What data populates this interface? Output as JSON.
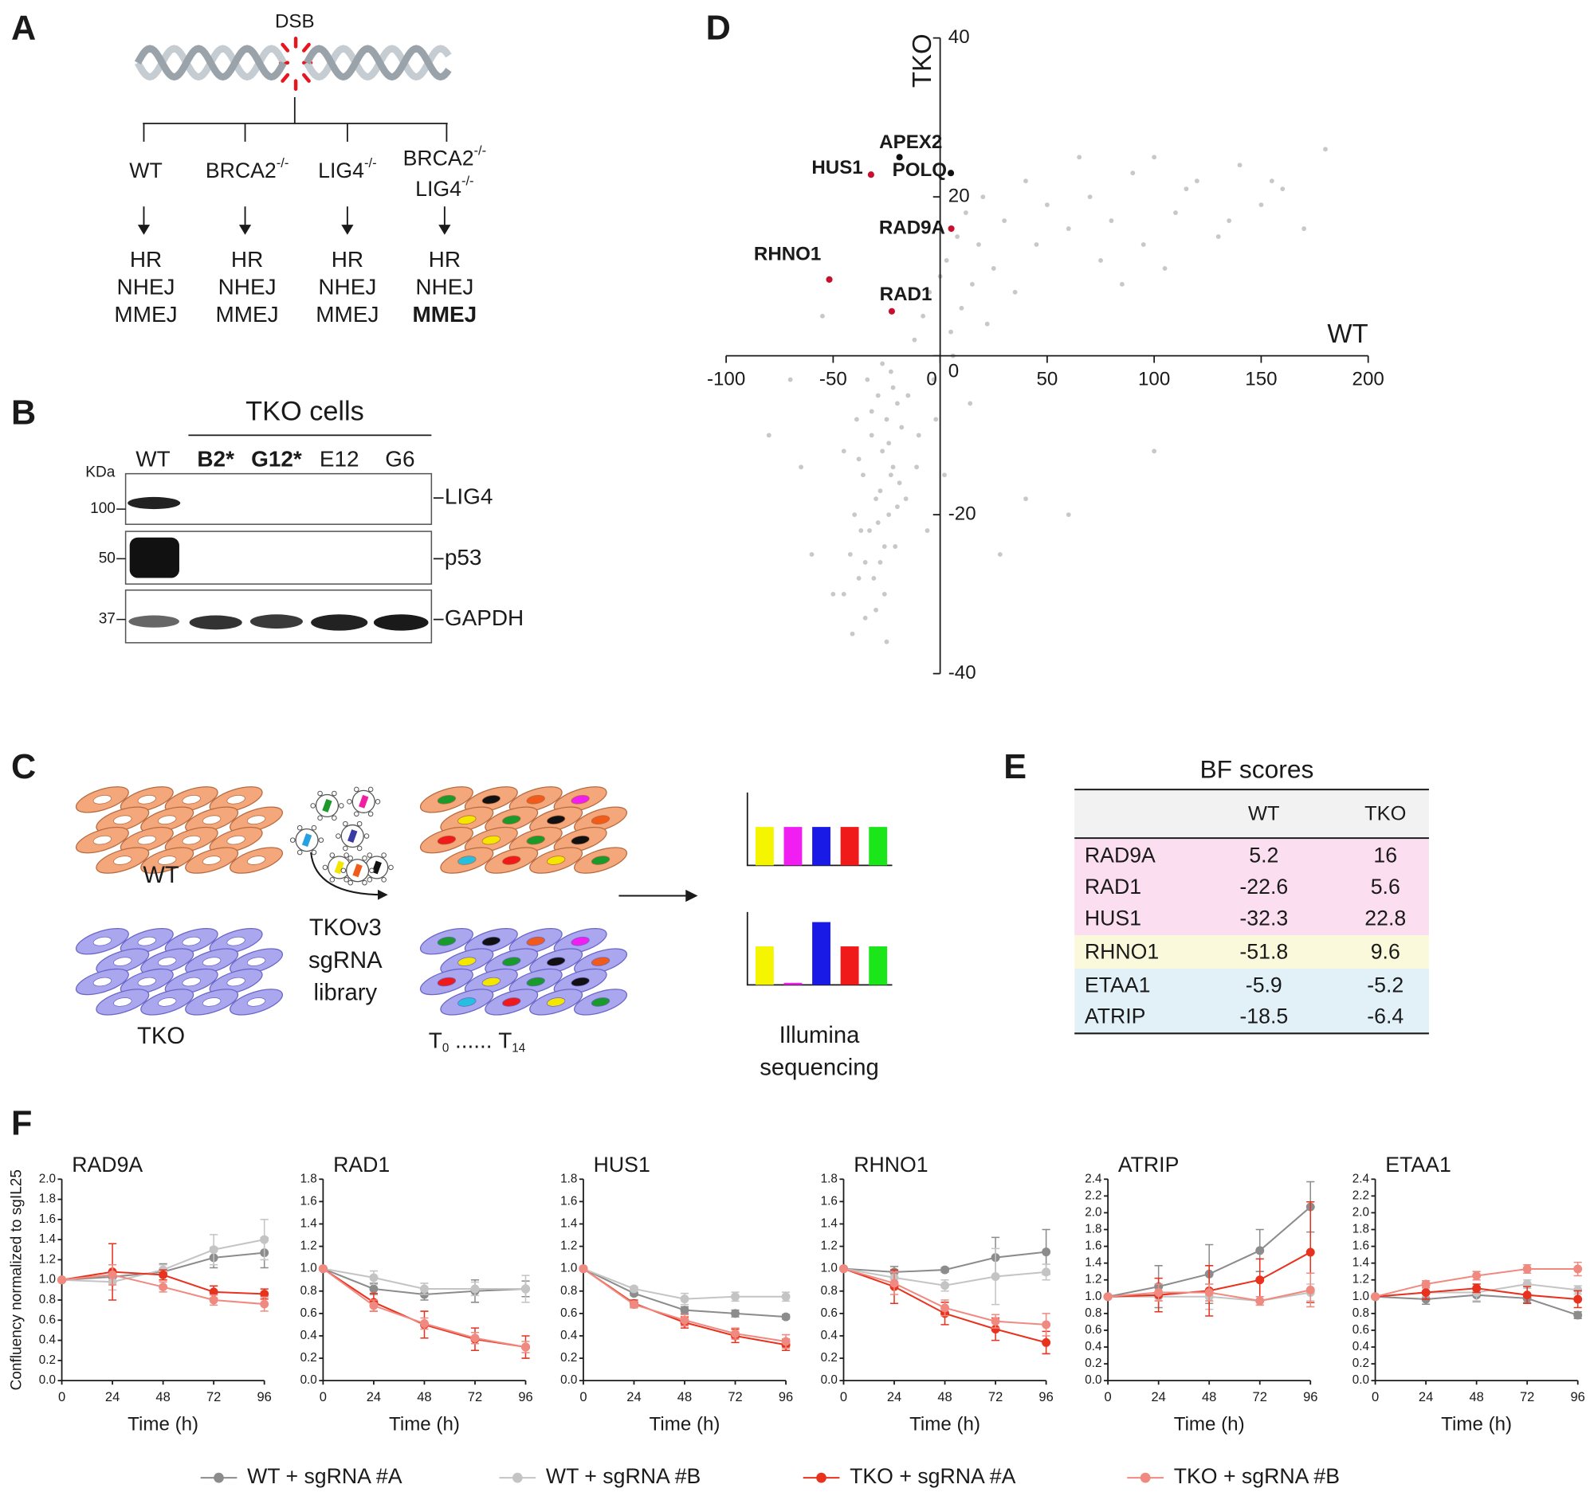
{
  "panel_labels": [
    "A",
    "B",
    "C",
    "D",
    "E",
    "F"
  ],
  "panel_a": {
    "break_label": "DSB",
    "genotypes": [
      [
        {
          "text": "WT"
        }
      ],
      [
        {
          "text": "BRCA2",
          "sup": "-/-"
        }
      ],
      [
        {
          "text": "LIG4",
          "sup": "-/-"
        }
      ],
      [
        {
          "text": "BRCA2",
          "sup": "-/-"
        },
        {
          "text": "LIG4",
          "sup": "-/-"
        }
      ]
    ],
    "pathways": [
      [
        {
          "text": "HR",
          "color": "#1a1a1a"
        },
        {
          "text": "NHEJ",
          "color": "#1a1a1a"
        },
        {
          "text": "MMEJ",
          "color": "#1a1a1a"
        }
      ],
      [
        {
          "text": "HR",
          "color": "#c8c8c8"
        },
        {
          "text": "NHEJ",
          "color": "#1a1a1a"
        },
        {
          "text": "MMEJ",
          "color": "#1a1a1a"
        }
      ],
      [
        {
          "text": "HR",
          "color": "#1a1a1a"
        },
        {
          "text": "NHEJ",
          "color": "#c8c8c8"
        },
        {
          "text": "MMEJ",
          "color": "#1a1a1a"
        }
      ],
      [
        {
          "text": "HR",
          "color": "#c8c8c8"
        },
        {
          "text": "NHEJ",
          "color": "#c8c8c8"
        },
        {
          "text": "MMEJ",
          "color": "#c8102e",
          "bold": true
        }
      ]
    ]
  },
  "panel_b": {
    "title": "TKO cells",
    "unit": "KDa",
    "lanes": [
      {
        "text": "WT"
      },
      {
        "text": "B2*",
        "bold": true
      },
      {
        "text": "G12*",
        "bold": true
      },
      {
        "text": "E12"
      },
      {
        "text": "G6"
      }
    ],
    "markers": [
      100,
      50,
      37
    ],
    "proteins": [
      "LIG4",
      "p53",
      "GAPDH"
    ]
  },
  "panel_c": {
    "wt": "WT",
    "tko": "TKO",
    "library": [
      "TKOv3",
      "sgRNA",
      "library"
    ],
    "timepoints": {
      "start": "T",
      "start_sub": "0",
      "dots": "......",
      "end": "T",
      "end_sub": "14"
    },
    "readout": [
      "Illumina",
      "sequencing"
    ]
  },
  "panel_e": {
    "title": "BF scores",
    "columns": [
      "WT",
      "TKO"
    ],
    "groups": [
      {
        "color": "#fbdff0",
        "rows": [
          [
            "RAD9A",
            5.2,
            16
          ],
          [
            "RAD1",
            -22.6,
            5.6
          ],
          [
            "HUS1",
            -32.3,
            22.8
          ]
        ]
      },
      {
        "color": "#fbf9dc",
        "rows": [
          [
            "RHNO1",
            -51.8,
            9.6
          ]
        ]
      },
      {
        "color": "#e2f1f8",
        "rows": [
          [
            "ETAA1",
            -5.9,
            -5.2
          ],
          [
            "ATRIP",
            -18.5,
            -6.4
          ]
        ]
      }
    ]
  },
  "chart_data": [
    {
      "type": "scatter",
      "xlabel": "WT",
      "ylabel": "TKO",
      "xlim": [
        -100,
        200
      ],
      "ylim": [
        -40,
        40
      ],
      "xticks": [
        -100,
        -50,
        0,
        50,
        100,
        150,
        200
      ],
      "yticks": [
        -40,
        -20,
        0,
        20,
        40
      ],
      "series": [
        {
          "color": "#c8c8c8",
          "x": [
            -45,
            -42,
            -40,
            -38,
            -36,
            -35,
            -33,
            -32,
            -30,
            -29,
            -28,
            -27,
            -26,
            -25,
            -24,
            -23,
            -22,
            -21,
            -20,
            -19,
            -45,
            -41,
            -39,
            -37,
            -34,
            -31,
            -30,
            -28,
            -26,
            -24,
            -22,
            -20,
            -18,
            -38,
            -35,
            -32,
            -29,
            -27,
            -25,
            -23,
            -15,
            -12,
            -10,
            -8,
            -5,
            -3,
            0,
            3,
            5,
            8,
            10,
            12,
            15,
            18,
            20,
            25,
            30,
            35,
            40,
            45,
            50,
            60,
            -16,
            -11,
            -6,
            -2,
            2,
            6,
            14,
            22,
            70,
            80,
            90,
            100,
            110,
            120,
            130,
            140,
            150,
            160,
            170,
            180,
            75,
            95,
            115,
            135,
            155,
            65,
            85,
            105,
            -80,
            -70,
            -60,
            -55,
            -50,
            28,
            40,
            60,
            100,
            -65
          ],
          "y": [
            -30,
            -25,
            -20,
            -28,
            -15,
            -33,
            -22,
            -10,
            -18,
            -5,
            -26,
            -12,
            -30,
            -8,
            -20,
            -2,
            -14,
            -24,
            -6,
            -16,
            -12,
            -35,
            -8,
            -22,
            -3,
            -28,
            -32,
            -17,
            -24,
            -11,
            -4,
            -19,
            -9,
            -13,
            -26,
            -7,
            -21,
            -1,
            -36,
            -15,
            -5,
            2,
            -10,
            5,
            8,
            -3,
            10,
            12,
            3,
            15,
            6,
            18,
            9,
            14,
            20,
            11,
            17,
            8,
            22,
            14,
            19,
            16,
            -18,
            -14,
            -22,
            -8,
            -15,
            0,
            -6,
            4,
            20,
            17,
            23,
            25,
            18,
            22,
            15,
            24,
            19,
            21,
            16,
            26,
            12,
            14,
            21,
            17,
            22,
            25,
            9,
            11,
            -10,
            -3,
            -25,
            5,
            -30,
            -25,
            -18,
            -20,
            -12,
            -14
          ]
        }
      ],
      "highlights": [
        {
          "label": "HUS1",
          "x": -32.3,
          "y": 22.8,
          "color": "#c8102e"
        },
        {
          "label": "APEX2",
          "x": -19,
          "y": 25,
          "color": "#111111"
        },
        {
          "label": "POLQ",
          "x": 5,
          "y": 23,
          "color": "#111111"
        },
        {
          "label": "RAD9A",
          "x": 5.2,
          "y": 16,
          "color": "#c8102e"
        },
        {
          "label": "RHNO1",
          "x": -51.8,
          "y": 9.6,
          "color": "#c8102e"
        },
        {
          "label": "RAD1",
          "x": -22.6,
          "y": 5.6,
          "color": "#c8102e"
        }
      ]
    },
    {
      "type": "line",
      "title": "RAD9A",
      "xlabel": "Time (h)",
      "ylabel": "Confluency normalized to sgIL25",
      "legend": "bottom",
      "x": [
        0,
        24,
        48,
        72,
        96
      ],
      "xlim": [
        0,
        96
      ],
      "xticks": [
        0,
        24,
        48,
        72,
        96
      ],
      "ylim": [
        0,
        2
      ],
      "yticks": [
        {
          "value": 0,
          "label": "0.0"
        },
        0.2,
        0.4,
        0.6,
        0.8,
        {
          "value": 1,
          "label": "1.0"
        },
        1.2,
        1.4,
        1.6,
        1.8,
        {
          "value": 2,
          "label": "2.0"
        }
      ],
      "series": [
        {
          "name": "WT + sgRNA #A",
          "color": "#8c8c8c",
          "values": [
            1,
            1.03,
            1.08,
            1.22,
            1.27
          ],
          "errors": [
            0,
            0.05,
            0.08,
            0.1,
            0.15
          ]
        },
        {
          "name": "WT + sgRNA #B",
          "color": "#c4c4c4",
          "values": [
            1,
            0.98,
            1.1,
            1.3,
            1.4
          ],
          "errors": [
            0,
            0.08,
            0.05,
            0.15,
            0.2
          ]
        },
        {
          "name": "TKO + sgRNA #A",
          "color": "#e8321e",
          "values": [
            1,
            1.08,
            1.05,
            0.88,
            0.86
          ],
          "errors": [
            0,
            0.28,
            0.05,
            0.06,
            0.05
          ]
        },
        {
          "name": "TKO + sgRNA #B",
          "color": "#f08a80",
          "values": [
            1,
            1.05,
            0.93,
            0.8,
            0.76
          ],
          "errors": [
            0,
            0.1,
            0.05,
            0.05,
            0.07
          ]
        }
      ]
    },
    {
      "type": "line",
      "title": "RAD1",
      "xlabel": "Time (h)",
      "x": [
        0,
        24,
        48,
        72,
        96
      ],
      "xlim": [
        0,
        96
      ],
      "xticks": [
        0,
        24,
        48,
        72,
        96
      ],
      "ylim": [
        0,
        1.8
      ],
      "yticks": [
        {
          "value": 0,
          "label": "0.0"
        },
        0.2,
        0.4,
        0.6,
        0.8,
        {
          "value": 1,
          "label": "1.0"
        },
        1.2,
        1.4,
        1.6,
        1.8
      ],
      "series": [
        {
          "color": "#8c8c8c",
          "values": [
            1,
            0.82,
            0.77,
            0.8,
            0.82
          ],
          "errors": [
            0,
            0.05,
            0.05,
            0.1,
            0.07
          ]
        },
        {
          "color": "#c4c4c4",
          "values": [
            1,
            0.92,
            0.82,
            0.82,
            0.82
          ],
          "errors": [
            0,
            0.06,
            0.05,
            0.06,
            0.12
          ]
        },
        {
          "color": "#e8321e",
          "values": [
            1,
            0.7,
            0.5,
            0.37,
            0.3
          ],
          "errors": [
            0,
            0.08,
            0.12,
            0.1,
            0.1
          ]
        },
        {
          "color": "#f08a80",
          "values": [
            1,
            0.67,
            0.51,
            0.38,
            0.3
          ],
          "errors": [
            0,
            0.05,
            0.05,
            0.05,
            0.05
          ]
        }
      ]
    },
    {
      "type": "line",
      "title": "HUS1",
      "xlabel": "Time (h)",
      "x": [
        0,
        24,
        48,
        72,
        96
      ],
      "xlim": [
        0,
        96
      ],
      "xticks": [
        0,
        24,
        48,
        72,
        96
      ],
      "ylim": [
        0,
        1.8
      ],
      "yticks": [
        {
          "value": 0,
          "label": "0.0"
        },
        0.2,
        0.4,
        0.6,
        0.8,
        {
          "value": 1,
          "label": "1.0"
        },
        1.2,
        1.4,
        1.6,
        1.8
      ],
      "series": [
        {
          "color": "#8c8c8c",
          "values": [
            1,
            0.78,
            0.63,
            0.6,
            0.57
          ],
          "errors": [
            0,
            0.02,
            0.03,
            0.03,
            0.02
          ]
        },
        {
          "color": "#c4c4c4",
          "values": [
            1,
            0.82,
            0.73,
            0.75,
            0.75
          ],
          "errors": [
            0,
            0.02,
            0.05,
            0.04,
            0.04
          ]
        },
        {
          "color": "#e8321e",
          "values": [
            1,
            0.69,
            0.52,
            0.4,
            0.32
          ],
          "errors": [
            0,
            0.03,
            0.05,
            0.06,
            0.05
          ]
        },
        {
          "color": "#f08a80",
          "values": [
            1,
            0.68,
            0.54,
            0.42,
            0.35
          ],
          "errors": [
            0,
            0.03,
            0.05,
            0.05,
            0.06
          ]
        }
      ]
    },
    {
      "type": "line",
      "title": "RHNO1",
      "xlabel": "Time (h)",
      "x": [
        0,
        24,
        48,
        72,
        96
      ],
      "xlim": [
        0,
        96
      ],
      "xticks": [
        0,
        24,
        48,
        72,
        96
      ],
      "ylim": [
        0,
        1.8
      ],
      "yticks": [
        {
          "value": 0,
          "label": "0.0"
        },
        0.2,
        0.4,
        0.6,
        0.8,
        {
          "value": 1,
          "label": "1.0"
        },
        1.2,
        1.4,
        1.6,
        1.8
      ],
      "series": [
        {
          "color": "#8c8c8c",
          "values": [
            1,
            0.97,
            0.99,
            1.1,
            1.15
          ],
          "errors": [
            0,
            0.05,
            0.02,
            0.18,
            0.2
          ]
        },
        {
          "color": "#c4c4c4",
          "values": [
            1,
            0.92,
            0.85,
            0.93,
            0.97
          ],
          "errors": [
            0,
            0.05,
            0.05,
            0.25,
            0.07
          ]
        },
        {
          "color": "#e8321e",
          "values": [
            1,
            0.84,
            0.6,
            0.46,
            0.34
          ],
          "errors": [
            0,
            0.15,
            0.1,
            0.1,
            0.1
          ]
        },
        {
          "color": "#f08a80",
          "values": [
            1,
            0.87,
            0.65,
            0.53,
            0.5
          ],
          "errors": [
            0,
            0.1,
            0.07,
            0.06,
            0.1
          ]
        }
      ]
    },
    {
      "type": "line",
      "title": "ATRIP",
      "xlabel": "Time (h)",
      "x": [
        0,
        24,
        48,
        72,
        96
      ],
      "xlim": [
        0,
        96
      ],
      "xticks": [
        0,
        24,
        48,
        72,
        96
      ],
      "ylim": [
        0,
        2.4
      ],
      "yticks": [
        {
          "value": 0,
          "label": "0.0"
        },
        0.2,
        0.4,
        0.6,
        0.8,
        {
          "value": 1,
          "label": "1.0"
        },
        1.2,
        1.4,
        1.6,
        1.8,
        {
          "value": 2,
          "label": "2.0"
        },
        2.2,
        2.4
      ],
      "series": [
        {
          "color": "#8c8c8c",
          "values": [
            1,
            1.12,
            1.27,
            1.55,
            2.07
          ],
          "errors": [
            0,
            0.25,
            0.35,
            0.25,
            0.3
          ]
        },
        {
          "color": "#c4c4c4",
          "values": [
            1,
            1,
            1,
            0.95,
            1.05
          ],
          "errors": [
            0,
            0.05,
            0.15,
            0.05,
            0.1
          ]
        },
        {
          "color": "#e8321e",
          "values": [
            1,
            1.02,
            1.07,
            1.2,
            1.53
          ],
          "errors": [
            0,
            0.2,
            0.3,
            0.25,
            0.6
          ]
        },
        {
          "color": "#f08a80",
          "values": [
            1,
            1.05,
            1.05,
            0.95,
            1.08
          ],
          "errors": [
            0,
            0.1,
            0.1,
            0.05,
            0.2
          ]
        }
      ]
    },
    {
      "type": "line",
      "title": "ETAA1",
      "xlabel": "Time (h)",
      "x": [
        0,
        24,
        48,
        72,
        96
      ],
      "xlim": [
        0,
        96
      ],
      "xticks": [
        0,
        24,
        48,
        72,
        96
      ],
      "ylim": [
        0,
        2.4
      ],
      "yticks": [
        {
          "value": 0,
          "label": "0.0"
        },
        0.2,
        0.4,
        0.6,
        0.8,
        {
          "value": 1,
          "label": "1.0"
        },
        1.2,
        1.4,
        1.6,
        1.8,
        {
          "value": 2,
          "label": "2.0"
        },
        2.2,
        2.4
      ],
      "series": [
        {
          "color": "#8c8c8c",
          "values": [
            1,
            0.97,
            1.02,
            0.98,
            0.78
          ],
          "errors": [
            0,
            0.06,
            0.08,
            0.05,
            0.04
          ]
        },
        {
          "color": "#c4c4c4",
          "values": [
            1,
            1.05,
            1.05,
            1.15,
            1.08
          ],
          "errors": [
            0,
            0.05,
            0.1,
            0.05,
            0.05
          ]
        },
        {
          "color": "#e8321e",
          "values": [
            1,
            1.05,
            1.1,
            1.02,
            0.97
          ],
          "errors": [
            0,
            0.08,
            0.05,
            0.1,
            0.1
          ]
        },
        {
          "color": "#f08a80",
          "values": [
            1,
            1.15,
            1.25,
            1.33,
            1.33
          ],
          "errors": [
            0,
            0.04,
            0.05,
            0.05,
            0.08
          ]
        }
      ]
    }
  ]
}
